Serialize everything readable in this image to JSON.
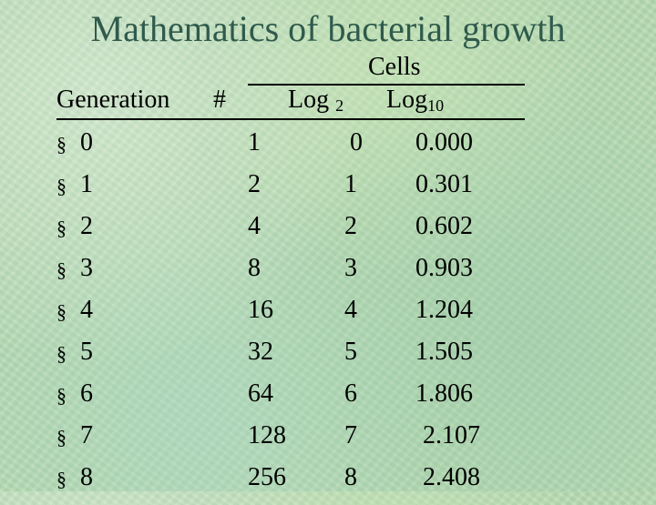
{
  "title": "Mathematics of  bacterial growth",
  "table": {
    "header": {
      "cells_group": "Cells",
      "generation": "Generation",
      "number": "#",
      "log2": "Log",
      "log2_base": "2",
      "log10": "Log",
      "log10_base": "10"
    },
    "bullet": "§",
    "rows": [
      {
        "generation": "0",
        "number": "1",
        "log2": "0",
        "log10": "0.000"
      },
      {
        "generation": "1",
        "number": "2",
        "log2": "1",
        "log10": "0.301"
      },
      {
        "generation": "2",
        "number": "4",
        "log2": "2",
        "log10": "0.602"
      },
      {
        "generation": "3",
        "number": "8",
        "log2": "3",
        "log10": "0.903"
      },
      {
        "generation": "4",
        "number": "16",
        "log2": "4",
        "log10": "1.204"
      },
      {
        "generation": "5",
        "number": "32",
        "log2": "5",
        "log10": "1.505"
      },
      {
        "generation": "6",
        "number": "64",
        "log2": "6",
        "log10": "1.806"
      },
      {
        "generation": "7",
        "number": "128",
        "log2": "7",
        "log10": "2.107"
      },
      {
        "generation": "8",
        "number": "256",
        "log2": "8",
        "log10": "2.408"
      }
    ]
  }
}
